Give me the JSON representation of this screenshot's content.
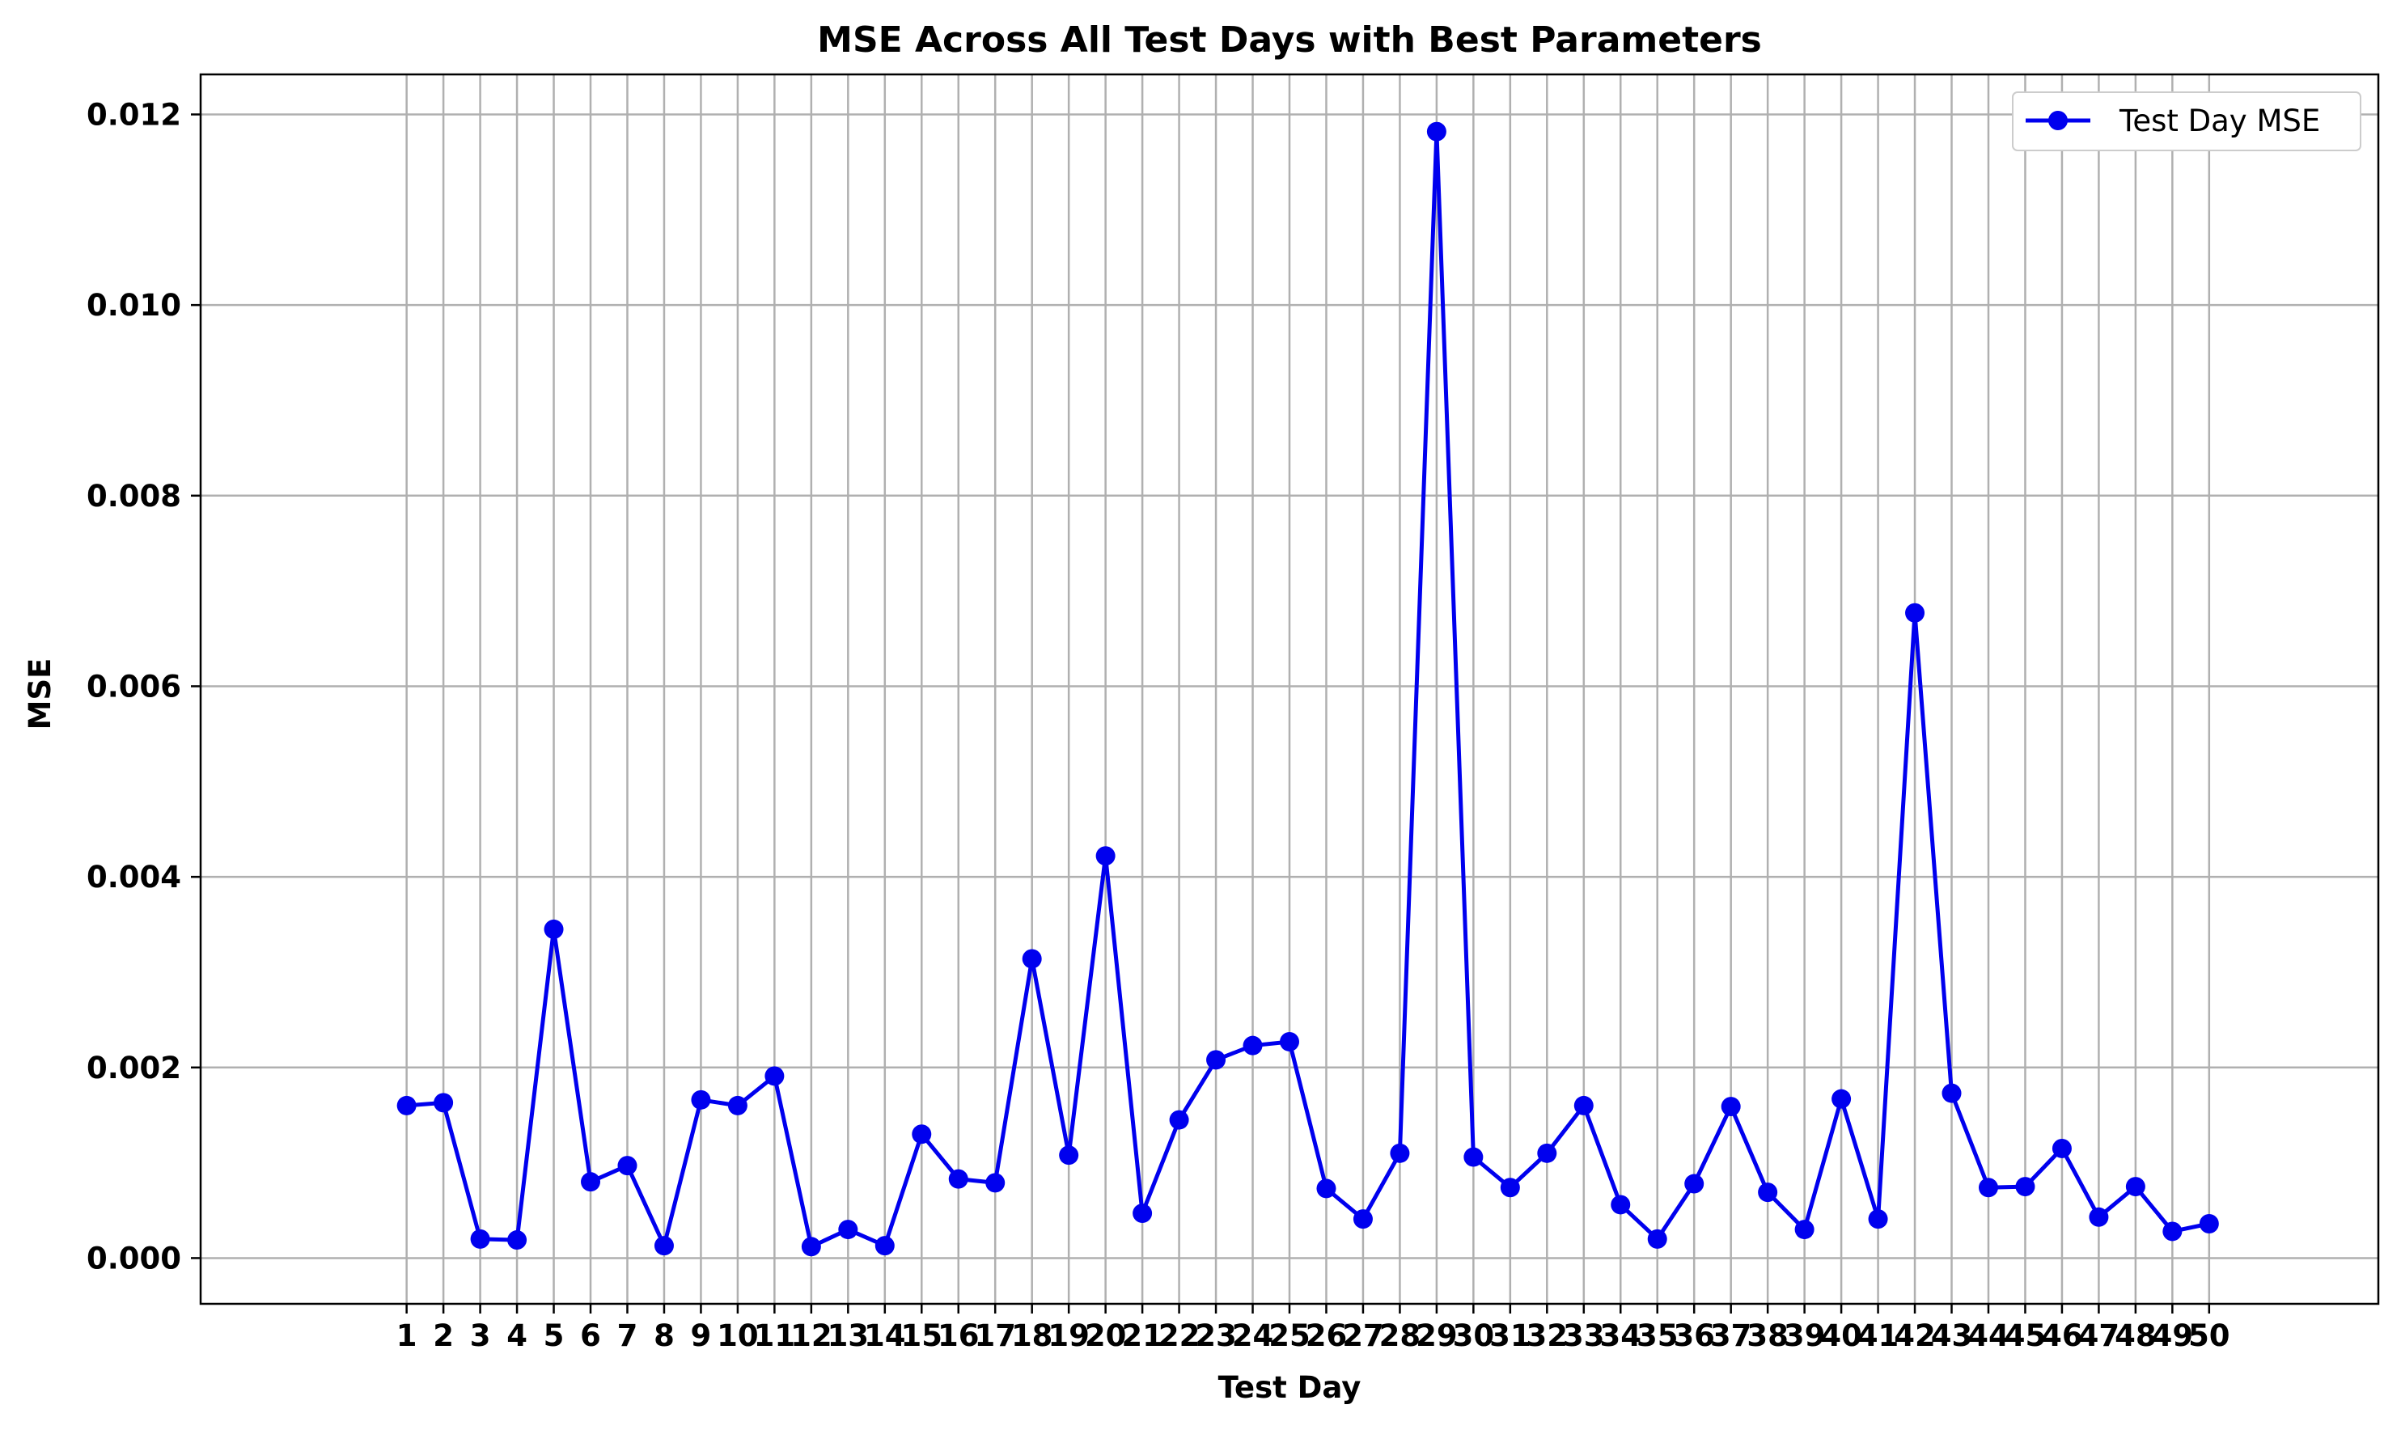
{
  "chart_data": {
    "type": "line",
    "title": "MSE Across All Test Days with Best Parameters",
    "xlabel": "Test Day",
    "ylabel": "MSE",
    "x": [
      1,
      2,
      3,
      4,
      5,
      6,
      7,
      8,
      9,
      10,
      11,
      12,
      13,
      14,
      15,
      16,
      17,
      18,
      19,
      20,
      21,
      22,
      23,
      24,
      25,
      26,
      27,
      28,
      29,
      30,
      31,
      32,
      33,
      34,
      35,
      36,
      37,
      38,
      39,
      40,
      41,
      42,
      43,
      44,
      45,
      46,
      47,
      48,
      49,
      50
    ],
    "xlim": [
      -4.6,
      54.6
    ],
    "ylim": [
      -0.00048,
      0.01242
    ],
    "yticks": [
      0.0,
      0.002,
      0.004,
      0.006,
      0.008,
      0.01,
      0.012
    ],
    "ytick_labels": [
      "0.000",
      "0.002",
      "0.004",
      "0.006",
      "0.008",
      "0.010",
      "0.012"
    ],
    "grid": true,
    "legend": {
      "position": "top-right"
    },
    "series": [
      {
        "name": "Test Day MSE",
        "color": "#0000ee",
        "marker": "circle",
        "values": [
          0.0016,
          0.00163,
          0.0002,
          0.00019,
          0.00345,
          0.0008,
          0.00097,
          0.00013,
          0.00166,
          0.0016,
          0.00191,
          0.00012,
          0.0003,
          0.00013,
          0.0013,
          0.00083,
          0.00079,
          0.00314,
          0.00108,
          0.00422,
          0.00047,
          0.00145,
          0.00208,
          0.00223,
          0.00227,
          0.00073,
          0.00041,
          0.0011,
          0.01182,
          0.00106,
          0.00074,
          0.0011,
          0.0016,
          0.00056,
          0.0002,
          0.00078,
          0.00159,
          0.00069,
          0.0003,
          0.00167,
          0.00041,
          0.00677,
          0.00173,
          0.00074,
          0.00075,
          0.00115,
          0.00043,
          0.00075,
          0.00028,
          0.00036
        ]
      }
    ]
  }
}
